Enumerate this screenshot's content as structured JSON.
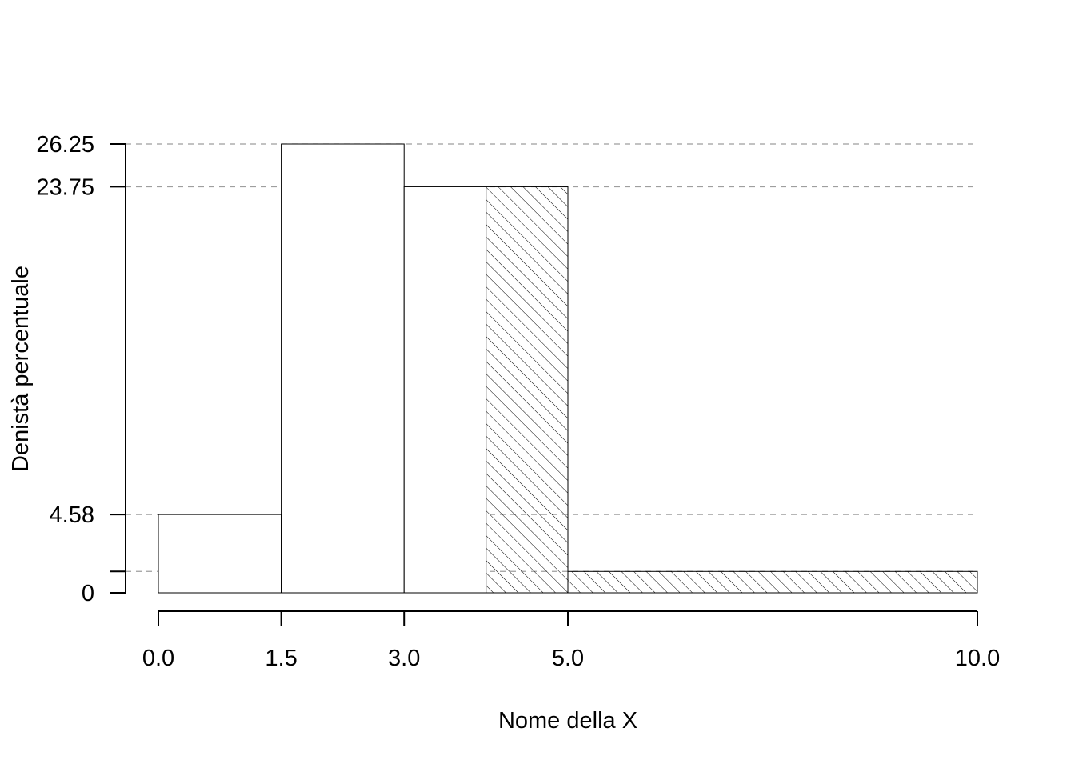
{
  "chart_data": {
    "type": "histogram",
    "title": "",
    "xlabel": "Nome della X",
    "ylabel": "Denistà percentuale",
    "bins": [
      {
        "from": 0.0,
        "to": 1.5,
        "density": 4.58,
        "hatched": false
      },
      {
        "from": 1.5,
        "to": 3.0,
        "density": 26.25,
        "hatched": false
      },
      {
        "from": 3.0,
        "to": 4.0,
        "density": 23.75,
        "hatched": false
      },
      {
        "from": 4.0,
        "to": 5.0,
        "density": 23.75,
        "hatched": true
      },
      {
        "from": 5.0,
        "to": 10.0,
        "density": 1.25,
        "hatched": true
      }
    ],
    "x_ticks": [
      0.0,
      1.5,
      3.0,
      5.0,
      10.0
    ],
    "x_tick_labels": [
      "0.0",
      "1.5",
      "3.0",
      "5.0",
      "10.0"
    ],
    "y_ticks": [
      0,
      1.25,
      4.58,
      23.75,
      26.25
    ],
    "y_tick_labels": [
      "0",
      "",
      "4.58",
      "23.75",
      "26.25"
    ],
    "reference_lines": [
      26.25,
      23.75,
      4.58,
      1.25
    ],
    "xlim": [
      0,
      10
    ],
    "ylim": [
      0,
      26.25
    ],
    "grid": false,
    "colors": {
      "bar_fill": "#ffffff",
      "bar_stroke": "#000000",
      "hatch": "#000000",
      "reference_line": "#9e9e9e"
    }
  }
}
